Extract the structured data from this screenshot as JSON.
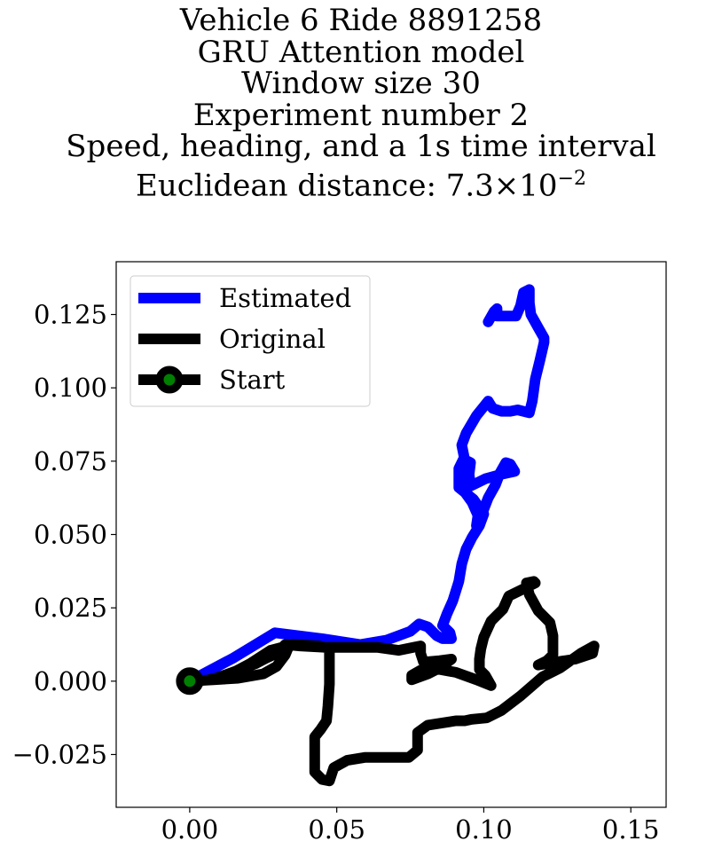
{
  "title_lines": [
    "Vehicle 6 Ride 8891258",
    "GRU Attention model",
    "Window size 30",
    "Experiment number 2",
    "Speed, heading, and a 1s time interval"
  ],
  "distance_label": "Euclidean distance: ",
  "distance_mantissa": "7.3",
  "distance_times": "×",
  "distance_base": "10",
  "distance_exponent": "−2",
  "chart_data": {
    "type": "line",
    "title": "",
    "xlabel": "",
    "ylabel": "",
    "xlim": [
      -0.025,
      0.162
    ],
    "ylim": [
      -0.043,
      0.143
    ],
    "xticks": [
      0.0,
      0.05,
      0.1,
      0.15
    ],
    "xtick_labels": [
      "0.00",
      "0.05",
      "0.10",
      "0.15"
    ],
    "yticks": [
      -0.025,
      0.0,
      0.025,
      0.05,
      0.075,
      0.1,
      0.125
    ],
    "ytick_labels": [
      "−0.025",
      "0.000",
      "0.025",
      "0.050",
      "0.075",
      "0.100",
      "0.125"
    ],
    "grid": false,
    "legend_position": "upper-left",
    "series": [
      {
        "name": "Estimated",
        "color": "#0000ff",
        "points": [
          [
            0.0,
            0.0
          ],
          [
            0.015,
            0.008
          ],
          [
            0.029,
            0.0165
          ],
          [
            0.045,
            0.0145
          ],
          [
            0.058,
            0.0125
          ],
          [
            0.067,
            0.014
          ],
          [
            0.075,
            0.017
          ],
          [
            0.078,
            0.0195
          ],
          [
            0.081,
            0.0185
          ],
          [
            0.084,
            0.0155
          ],
          [
            0.086,
            0.0145
          ],
          [
            0.089,
            0.0145
          ],
          [
            0.0885,
            0.0165
          ],
          [
            0.086,
            0.019
          ],
          [
            0.0875,
            0.023
          ],
          [
            0.0895,
            0.0275
          ],
          [
            0.0915,
            0.034
          ],
          [
            0.0925,
            0.04
          ],
          [
            0.094,
            0.045
          ],
          [
            0.096,
            0.049
          ],
          [
            0.0985,
            0.053
          ],
          [
            0.1,
            0.057
          ],
          [
            0.0965,
            0.062
          ],
          [
            0.0915,
            0.066
          ],
          [
            0.0915,
            0.0725
          ],
          [
            0.093,
            0.0755
          ],
          [
            0.0945,
            0.07
          ],
          [
            0.0935,
            0.0645
          ],
          [
            0.096,
            0.061
          ],
          [
            0.098,
            0.0565
          ],
          [
            0.0975,
            0.053
          ],
          [
            0.099,
            0.056
          ],
          [
            0.1015,
            0.0625
          ],
          [
            0.104,
            0.067
          ],
          [
            0.1055,
            0.071
          ],
          [
            0.1075,
            0.0745
          ],
          [
            0.109,
            0.074
          ],
          [
            0.1105,
            0.0715
          ],
          [
            0.106,
            0.0705
          ],
          [
            0.1005,
            0.069
          ],
          [
            0.0955,
            0.0665
          ],
          [
            0.095,
            0.0705
          ],
          [
            0.0955,
            0.0745
          ],
          [
            0.0935,
            0.0755
          ],
          [
            0.0925,
            0.0805
          ],
          [
            0.094,
            0.0845
          ],
          [
            0.0975,
            0.0905
          ],
          [
            0.1015,
            0.0955
          ],
          [
            0.103,
            0.093
          ],
          [
            0.106,
            0.092
          ],
          [
            0.109,
            0.092
          ],
          [
            0.1115,
            0.0925
          ],
          [
            0.1155,
            0.0915
          ],
          [
            0.1165,
            0.0955
          ],
          [
            0.1175,
            0.103
          ],
          [
            0.119,
            0.109
          ],
          [
            0.1205,
            0.1155
          ],
          [
            0.1205,
            0.117
          ],
          [
            0.1185,
            0.1205
          ],
          [
            0.116,
            0.125
          ],
          [
            0.1155,
            0.129
          ],
          [
            0.1155,
            0.1335
          ],
          [
            0.1135,
            0.1325
          ],
          [
            0.1125,
            0.128
          ],
          [
            0.111,
            0.1245
          ],
          [
            0.108,
            0.1245
          ],
          [
            0.1045,
            0.1245
          ],
          [
            0.1045,
            0.127
          ],
          [
            0.1035,
            0.126
          ],
          [
            0.1015,
            0.1225
          ]
        ]
      },
      {
        "name": "Original",
        "color": "#000000",
        "points": [
          [
            0.0,
            0.0
          ],
          [
            0.008,
            0.0005
          ],
          [
            0.0165,
            0.001
          ],
          [
            0.025,
            0.0025
          ],
          [
            0.0295,
            0.005
          ],
          [
            0.0325,
            0.009
          ],
          [
            0.0335,
            0.0115
          ],
          [
            0.0285,
            0.009
          ],
          [
            0.021,
            0.0055
          ],
          [
            0.013,
            0.002
          ],
          [
            0.0065,
            0.0005
          ],
          [
            0.013,
            0.002
          ],
          [
            0.0205,
            0.006
          ],
          [
            0.0275,
            0.0105
          ],
          [
            0.035,
            0.0125
          ],
          [
            0.044,
            0.012
          ],
          [
            0.0475,
            0.011
          ],
          [
            0.0475,
            0.006
          ],
          [
            0.0475,
            -0.001
          ],
          [
            0.047,
            -0.0085
          ],
          [
            0.0465,
            -0.0135
          ],
          [
            0.0445,
            -0.0165
          ],
          [
            0.0425,
            -0.019
          ],
          [
            0.0425,
            -0.025
          ],
          [
            0.0425,
            -0.031
          ],
          [
            0.045,
            -0.0335
          ],
          [
            0.0475,
            -0.034
          ],
          [
            0.049,
            -0.0295
          ],
          [
            0.0535,
            -0.027
          ],
          [
            0.0595,
            -0.026
          ],
          [
            0.0675,
            -0.026
          ],
          [
            0.0745,
            -0.026
          ],
          [
            0.0775,
            -0.0235
          ],
          [
            0.0775,
            -0.0175
          ],
          [
            0.081,
            -0.015
          ],
          [
            0.0905,
            -0.0135
          ],
          [
            0.0935,
            -0.0135
          ],
          [
            0.096,
            -0.013
          ],
          [
            0.101,
            -0.0125
          ],
          [
            0.106,
            -0.01
          ],
          [
            0.1125,
            -0.005
          ],
          [
            0.12,
            0.0015
          ],
          [
            0.126,
            0.0045
          ],
          [
            0.133,
            0.0095
          ],
          [
            0.1375,
            0.012
          ],
          [
            0.137,
            0.0095
          ],
          [
            0.131,
            0.0075
          ],
          [
            0.1245,
            0.0065
          ],
          [
            0.1185,
            0.0055
          ],
          [
            0.1215,
            0.007
          ],
          [
            0.1235,
            0.009
          ],
          [
            0.1235,
            0.0155
          ],
          [
            0.1225,
            0.02
          ],
          [
            0.1185,
            0.024
          ],
          [
            0.1155,
            0.0295
          ],
          [
            0.1145,
            0.0335
          ],
          [
            0.117,
            0.034
          ],
          [
            0.1175,
            0.0335
          ],
          [
            0.1135,
            0.0315
          ],
          [
            0.1085,
            0.029
          ],
          [
            0.1065,
            0.0245
          ],
          [
            0.1025,
            0.0205
          ],
          [
            0.1,
            0.015
          ],
          [
            0.099,
            0.011
          ],
          [
            0.0985,
            0.0075
          ],
          [
            0.0985,
            0.004
          ],
          [
            0.1005,
            0.002
          ],
          [
            0.1025,
            -0.0015
          ],
          [
            0.0975,
            0.0005
          ],
          [
            0.0905,
            0.003
          ],
          [
            0.085,
            0.004
          ],
          [
            0.079,
            0.004
          ],
          [
            0.0755,
            0.002
          ],
          [
            0.0755,
            0.0005
          ],
          [
            0.081,
            0.0025
          ],
          [
            0.085,
            0.0045
          ],
          [
            0.089,
            0.0075
          ],
          [
            0.085,
            0.007
          ],
          [
            0.0795,
            0.0065
          ],
          [
            0.0785,
            0.0095
          ],
          [
            0.0785,
            0.012
          ],
          [
            0.076,
            0.0115
          ],
          [
            0.071,
            0.0105
          ],
          [
            0.064,
            0.0115
          ],
          [
            0.0555,
            0.0115
          ],
          [
            0.0465,
            0.0115
          ],
          [
            0.0375,
            0.012
          ],
          [
            0.0325,
            0.0125
          ],
          [
            0.03,
            0.01
          ],
          [
            0.0225,
            0.006
          ],
          [
            0.0145,
            0.003
          ],
          [
            0.0075,
            0.0005
          ],
          [
            0.0025,
            0.0
          ]
        ]
      },
      {
        "name": "Start",
        "color": "#000000",
        "marker_face": "#008000",
        "points": [
          [
            0.0,
            0.0
          ]
        ]
      }
    ]
  }
}
